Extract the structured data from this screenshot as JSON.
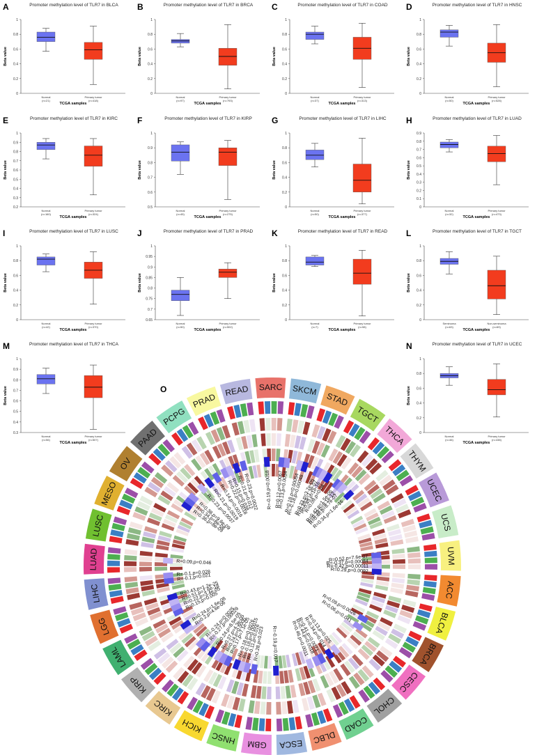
{
  "chart_data": {
    "type": "boxplot",
    "panel_xlabel": "TCGA samples",
    "panel_ylabel": "Beta value",
    "panels": [
      {
        "letter": "A",
        "title": "Promoter methylation level of TLR7 in BLCA",
        "ylim": [
          0,
          1
        ],
        "ticks": [
          "0",
          "0.2",
          "0.4",
          "0.6",
          "0.8",
          "1"
        ],
        "groups": [
          {
            "label": "Normal",
            "n": "(n=21)",
            "color": "#6b73f0",
            "box": [
              0.57,
              0.7,
              0.76,
              0.83,
              0.88
            ]
          },
          {
            "label": "Primary tumor",
            "n": "(n=418)",
            "color": "#f23c1e",
            "box": [
              0.12,
              0.46,
              0.59,
              0.69,
              0.91
            ]
          }
        ]
      },
      {
        "letter": "B",
        "title": "Promoter methylation level of TLR7 in BRCA",
        "ylim": [
          0,
          1
        ],
        "ticks": [
          "0",
          "0.2",
          "0.4",
          "0.6",
          "0.8",
          "1"
        ],
        "groups": [
          {
            "label": "Normal",
            "n": "(n=97)",
            "color": "#6b73f0",
            "box": [
              0.63,
              0.68,
              0.71,
              0.73,
              0.81
            ]
          },
          {
            "label": "Primary tumor",
            "n": "(n=793)",
            "color": "#f23c1e",
            "box": [
              0.06,
              0.38,
              0.5,
              0.61,
              0.93
            ]
          }
        ]
      },
      {
        "letter": "C",
        "title": "Promoter methylation level of TLR7 in COAD",
        "ylim": [
          0,
          1
        ],
        "ticks": [
          "0",
          "0.2",
          "0.4",
          "0.6",
          "0.8",
          "1"
        ],
        "groups": [
          {
            "label": "Normal",
            "n": "(n=37)",
            "color": "#6b73f0",
            "box": [
              0.67,
              0.73,
              0.8,
              0.83,
              0.91
            ]
          },
          {
            "label": "Primary tumor",
            "n": "(n=313)",
            "color": "#f23c1e",
            "box": [
              0.08,
              0.46,
              0.61,
              0.76,
              0.95
            ]
          }
        ]
      },
      {
        "letter": "D",
        "title": "Promoter methylation level of TLR7 in HNSC",
        "ylim": [
          0,
          1
        ],
        "ticks": [
          "0",
          "0.2",
          "0.4",
          "0.6",
          "0.8",
          "1"
        ],
        "groups": [
          {
            "label": "Normal",
            "n": "(n=50)",
            "color": "#6b73f0",
            "box": [
              0.64,
              0.76,
              0.83,
              0.86,
              0.92
            ]
          },
          {
            "label": "Primary tumor",
            "n": "(n=528)",
            "color": "#f23c1e",
            "box": [
              0.09,
              0.42,
              0.55,
              0.68,
              0.93
            ]
          }
        ]
      },
      {
        "letter": "E",
        "title": "Promoter methylation level of TLR7 in KIRC",
        "ylim": [
          0.2,
          1
        ],
        "ticks": [
          "0.2",
          "0.3",
          "0.4",
          "0.5",
          "0.6",
          "0.7",
          "0.8",
          "0.9",
          "1"
        ],
        "groups": [
          {
            "label": "Normal",
            "n": "(n=160)",
            "color": "#6b73f0",
            "box": [
              0.72,
              0.82,
              0.87,
              0.9,
              0.94
            ]
          },
          {
            "label": "Primary tumor",
            "n": "(n=324)",
            "color": "#f23c1e",
            "box": [
              0.33,
              0.64,
              0.76,
              0.86,
              0.94
            ]
          }
        ]
      },
      {
        "letter": "F",
        "title": "Promoter methylation level of TLR7 in KIRP",
        "ylim": [
          0.5,
          1
        ],
        "ticks": [
          "0.5",
          "0.6",
          "0.7",
          "0.8",
          "0.9",
          "1"
        ],
        "groups": [
          {
            "label": "Normal",
            "n": "(n=45)",
            "color": "#6b73f0",
            "box": [
              0.72,
              0.81,
              0.87,
              0.92,
              0.94
            ]
          },
          {
            "label": "Primary tumor",
            "n": "(n=275)",
            "color": "#f23c1e",
            "box": [
              0.55,
              0.78,
              0.87,
              0.9,
              0.95
            ]
          }
        ]
      },
      {
        "letter": "G",
        "title": "Promoter methylation level of TLR7 in LIHC",
        "ylim": [
          0,
          1
        ],
        "ticks": [
          "0",
          "0.2",
          "0.4",
          "0.6",
          "0.8",
          "1"
        ],
        "groups": [
          {
            "label": "Normal",
            "n": "(n=50)",
            "color": "#6b73f0",
            "box": [
              0.54,
              0.64,
              0.7,
              0.77,
              0.86
            ]
          },
          {
            "label": "Primary tumor",
            "n": "(n=377)",
            "color": "#f23c1e",
            "box": [
              0.04,
              0.2,
              0.36,
              0.58,
              0.93
            ]
          }
        ]
      },
      {
        "letter": "H",
        "title": "Promoter methylation level of TLR7 in LUAD",
        "ylim": [
          0,
          0.9
        ],
        "ticks": [
          "0",
          "0.1",
          "0.2",
          "0.3",
          "0.4",
          "0.5",
          "0.6",
          "0.7",
          "0.8",
          "0.9"
        ],
        "groups": [
          {
            "label": "Normal",
            "n": "(n=32)",
            "color": "#6b73f0",
            "box": [
              0.67,
              0.72,
              0.76,
              0.79,
              0.82
            ]
          },
          {
            "label": "Primary tumor",
            "n": "(n=473)",
            "color": "#f23c1e",
            "box": [
              0.27,
              0.55,
              0.65,
              0.74,
              0.87
            ]
          }
        ]
      },
      {
        "letter": "I",
        "title": "Promoter methylation level of TLR7 in LUSC",
        "ylim": [
          0,
          1
        ],
        "ticks": [
          "0",
          "0.2",
          "0.4",
          "0.6",
          "0.8",
          "1"
        ],
        "groups": [
          {
            "label": "Normal",
            "n": "(n=42)",
            "color": "#6b73f0",
            "box": [
              0.65,
              0.74,
              0.82,
              0.85,
              0.89
            ]
          },
          {
            "label": "Primary tumor",
            "n": "(n=370)",
            "color": "#f23c1e",
            "box": [
              0.21,
              0.56,
              0.67,
              0.78,
              0.92
            ]
          }
        ]
      },
      {
        "letter": "J",
        "title": "Promoter methylation level of TLR7 in PRAD",
        "ylim": [
          0.65,
          1
        ],
        "ticks": [
          "0.65",
          "0.7",
          "0.75",
          "0.8",
          "0.85",
          "0.9",
          "0.95",
          "1"
        ],
        "groups": [
          {
            "label": "Normal",
            "n": "(n=50)",
            "color": "#6b73f0",
            "box": [
              0.67,
              0.74,
              0.77,
              0.79,
              0.85
            ]
          },
          {
            "label": "Primary tumor",
            "n": "(n=502)",
            "color": "#f23c1e",
            "box": [
              0.75,
              0.85,
              0.875,
              0.89,
              0.92
            ]
          }
        ]
      },
      {
        "letter": "K",
        "title": "Promoter methylation level of TLR7 in READ",
        "ylim": [
          0,
          1
        ],
        "ticks": [
          "0",
          "0.2",
          "0.4",
          "0.6",
          "0.8",
          "1"
        ],
        "groups": [
          {
            "label": "Normal",
            "n": "(n=7)",
            "color": "#6b73f0",
            "box": [
              0.72,
              0.74,
              0.78,
              0.85,
              0.87
            ]
          },
          {
            "label": "Primary tumor",
            "n": "(n=98)",
            "color": "#f23c1e",
            "box": [
              0.05,
              0.48,
              0.63,
              0.82,
              0.94
            ]
          }
        ]
      },
      {
        "letter": "L",
        "title": "Promoter methylation level of TLR7 in TGCT",
        "ylim": [
          0,
          1
        ],
        "ticks": [
          "0",
          "0.2",
          "0.4",
          "0.6",
          "0.8",
          "1"
        ],
        "groups": [
          {
            "label": "Seminoma",
            "n": "(n=63)",
            "color": "#6b73f0",
            "box": [
              0.62,
              0.75,
              0.79,
              0.83,
              0.92
            ]
          },
          {
            "label": "Non-seminoma",
            "n": "(n=69)",
            "color": "#f23c1e",
            "box": [
              0.07,
              0.28,
              0.46,
              0.67,
              0.86
            ]
          }
        ]
      },
      {
        "letter": "M",
        "title": "Promoter methylation level of TLR7 in THCA",
        "ylim": [
          0.3,
          1
        ],
        "ticks": [
          "0.3",
          "0.4",
          "0.5",
          "0.6",
          "0.7",
          "0.8",
          "0.9",
          "1"
        ],
        "groups": [
          {
            "label": "Normal",
            "n": "(n=56)",
            "color": "#6b73f0",
            "box": [
              0.67,
              0.76,
              0.81,
              0.85,
              0.91
            ]
          },
          {
            "label": "Primary tumor",
            "n": "(n=507)",
            "color": "#f23c1e",
            "box": [
              0.33,
              0.63,
              0.73,
              0.84,
              0.94
            ]
          }
        ]
      },
      {
        "letter": "N",
        "title": "Promoter methylation level of TLR7 in UCEC",
        "ylim": [
          0,
          1
        ],
        "ticks": [
          "0",
          "0.2",
          "0.4",
          "0.6",
          "0.8",
          "1"
        ],
        "groups": [
          {
            "label": "Normal",
            "n": "(n=46)",
            "color": "#6b73f0",
            "box": [
              0.64,
              0.74,
              0.77,
              0.8,
              0.89
            ]
          },
          {
            "label": "Primary tumor",
            "n": "(n=438)",
            "color": "#f23c1e",
            "box": [
              0.21,
              0.51,
              0.58,
              0.72,
              0.93
            ]
          }
        ]
      }
    ],
    "circos": {
      "letter": "O",
      "cancers": [
        {
          "name": "SARC",
          "color": "#e8726a"
        },
        {
          "name": "SKCM",
          "color": "#8fb8d9"
        },
        {
          "name": "STAD",
          "color": "#f0a860"
        },
        {
          "name": "TGCT",
          "color": "#a8d860"
        },
        {
          "name": "THCA",
          "color": "#f2a8d8"
        },
        {
          "name": "THYM",
          "color": "#d8d8d8"
        },
        {
          "name": "UCEC",
          "color": "#b89ad8"
        },
        {
          "name": "UCS",
          "color": "#c8ecc8"
        },
        {
          "name": "UVM",
          "color": "#f8f080"
        },
        {
          "name": "ACC",
          "color": "#f28a30"
        },
        {
          "name": "BLCA",
          "color": "#f0f040"
        },
        {
          "name": "BRCA",
          "color": "#a0522d"
        },
        {
          "name": "CESC",
          "color": "#f070c0"
        },
        {
          "name": "CHOL",
          "color": "#a0a0a0"
        },
        {
          "name": "COAD",
          "color": "#70d090"
        },
        {
          "name": "DLBC",
          "color": "#f09070"
        },
        {
          "name": "ESCA",
          "color": "#a0b8e0"
        },
        {
          "name": "GBM",
          "color": "#e890e0"
        },
        {
          "name": "HNSC",
          "color": "#90e070"
        },
        {
          "name": "KICH",
          "color": "#f8d830"
        },
        {
          "name": "KIRC",
          "color": "#e8c890"
        },
        {
          "name": "KIRP",
          "color": "#b0b0b0"
        },
        {
          "name": "LAML",
          "color": "#40b070"
        },
        {
          "name": "LGG",
          "color": "#e07030"
        },
        {
          "name": "LIHC",
          "color": "#8090d0"
        },
        {
          "name": "LUAD",
          "color": "#e04090"
        },
        {
          "name": "LUSC",
          "color": "#70c030"
        },
        {
          "name": "MESO",
          "color": "#e0b030"
        },
        {
          "name": "OV",
          "color": "#b08030"
        },
        {
          "name": "PAAD",
          "color": "#707070"
        },
        {
          "name": "PCPG",
          "color": "#90e0c0"
        },
        {
          "name": "PRAD",
          "color": "#f8f8a0"
        },
        {
          "name": "READ",
          "color": "#b8b8e0"
        }
      ],
      "track_colors": [
        "#e8272b",
        "#3b7fc4",
        "#4caf50",
        "#9c4fa8"
      ],
      "annotations": [
        {
          "angle": -3,
          "text": "R=-0.19,p=0.0018"
        },
        {
          "angle": 5,
          "text": "R=0.12,p=0.0067"
        },
        {
          "angle": 8,
          "text": "R=0.13,p=0.0034"
        },
        {
          "angle": 15,
          "text": "R=0.18,p=0.00054"
        },
        {
          "angle": 18,
          "text": "R=-0.18,p=0.00048"
        },
        {
          "angle": 25,
          "text": "R=0.23,p=3.7e-05"
        },
        {
          "angle": 27,
          "text": "R=0.29,p=1.3e-07"
        },
        {
          "angle": 29,
          "text": "R=0.43,p=1e-16"
        },
        {
          "angle": 32,
          "text": "R=0.09,p=0.04"
        },
        {
          "angle": 38,
          "text": "R=0.42,p=1.5e-06"
        },
        {
          "angle": 40,
          "text": "R=0.39,p=9.1e-12"
        },
        {
          "angle": 42,
          "text": "R=0.46,p=8.7e-07"
        },
        {
          "angle": 47,
          "text": "R=0.34,p=1.6e-16"
        },
        {
          "angle": 84,
          "text": "R=0.52,p=7.6e-07"
        },
        {
          "angle": 87,
          "text": "R=-0.37,p=0.00084"
        },
        {
          "angle": 90,
          "text": "R=-0.42,p=0.00011"
        },
        {
          "angle": 93,
          "text": "R=0.29,p=0.0092"
        },
        {
          "angle": 120,
          "text": "R=0.09,p=0.0026"
        },
        {
          "angle": 125,
          "text": "R=0.06,p=0.041"
        },
        {
          "angle": 143,
          "text": "R=0.13,p=0.025"
        },
        {
          "angle": 147,
          "text": "R=0.34,p=0.014"
        },
        {
          "angle": 152,
          "text": "R=0.41,p=0.0071"
        },
        {
          "angle": 155,
          "text": "R=0.44,p=0.0018"
        },
        {
          "angle": 159,
          "text": "R=0.46,p=0.0011"
        },
        {
          "angle": 178,
          "text": "R=-0.19,p=0.017"
        },
        {
          "angle": 190,
          "text": "R=0.28,p=0.023"
        },
        {
          "angle": 194,
          "text": "R=-0.11,p=0.016"
        },
        {
          "angle": 197,
          "text": "R=-0.18,p=0.00015"
        },
        {
          "angle": 200,
          "text": "R=-0.18,p=0.0076"
        },
        {
          "angle": 205,
          "text": "R=0.17,p=7.1e-05"
        },
        {
          "angle": 208,
          "text": "R=0.24,p=0.0005"
        },
        {
          "angle": 211,
          "text": "R=0.37,p=4.3e-05"
        },
        {
          "angle": 215,
          "text": "R=0.24,p=8.5e-05"
        },
        {
          "angle": 220,
          "text": "R=-0.27,p=0.00029"
        },
        {
          "angle": 223,
          "text": "R=-0.24,p=0.0025"
        },
        {
          "angle": 233,
          "text": "R=0.2,p=4.6e-06"
        },
        {
          "angle": 236,
          "text": "R=0.24,p=1.6e-08"
        },
        {
          "angle": 244,
          "text": "R=0.15,p=0.005"
        },
        {
          "angle": 247,
          "text": "R=0.22,p=3.4e-05"
        },
        {
          "angle": 250,
          "text": "R=0.51,p=1.6e-18"
        },
        {
          "angle": 253,
          "text": "R=0.43,p=1.2e-25"
        },
        {
          "angle": 262,
          "text": "R=-0.1,p=0.021"
        },
        {
          "angle": 265,
          "text": "R=-0.1,p=0.028"
        },
        {
          "angle": 273,
          "text": "R=0.09,p=0.046"
        },
        {
          "angle": 305,
          "text": "R=0.36,p=8e-09"
        },
        {
          "angle": 308,
          "text": "R=0.34,p=8e-08"
        },
        {
          "angle": 311,
          "text": "R=0.38,p=9.6e-09"
        },
        {
          "angle": 318,
          "text": "R=0.23,p=0.0037"
        },
        {
          "angle": 323,
          "text": "R=0.21,p=0.0019"
        },
        {
          "angle": 328,
          "text": "R=0.14,p=0.0016"
        },
        {
          "angle": 333,
          "text": "R=0.22,p=0.0018"
        },
        {
          "angle": 336,
          "text": "R=0.15,p=0.038"
        },
        {
          "angle": 340,
          "text": "R=0.21,p=0.012"
        },
        {
          "angle": 344,
          "text": "R=0.23,p=0.0022"
        }
      ]
    }
  }
}
